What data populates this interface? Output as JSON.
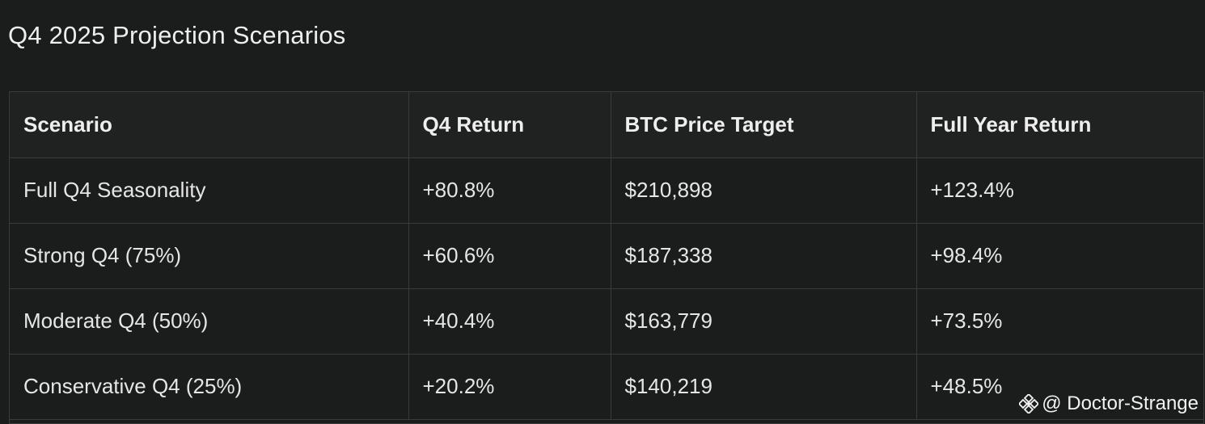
{
  "title": "Q4 2025 Projection Scenarios",
  "table": {
    "headers": [
      "Scenario",
      "Q4 Return",
      "BTC Price Target",
      "Full Year Return"
    ],
    "rows": [
      [
        "Full Q4 Seasonality",
        "+80.8%",
        "$210,898",
        "+123.4%"
      ],
      [
        "Strong Q4 (75%)",
        "+60.6%",
        "$187,338",
        "+98.4%"
      ],
      [
        "Moderate Q4 (50%)",
        "+40.4%",
        "$163,779",
        "+73.5%"
      ],
      [
        "Conservative Q4 (25%)",
        "+20.2%",
        "$140,219",
        "+48.5%"
      ]
    ]
  },
  "watermark": {
    "icon": "binance-logo-icon",
    "text": "@ Doctor-Strange"
  }
}
